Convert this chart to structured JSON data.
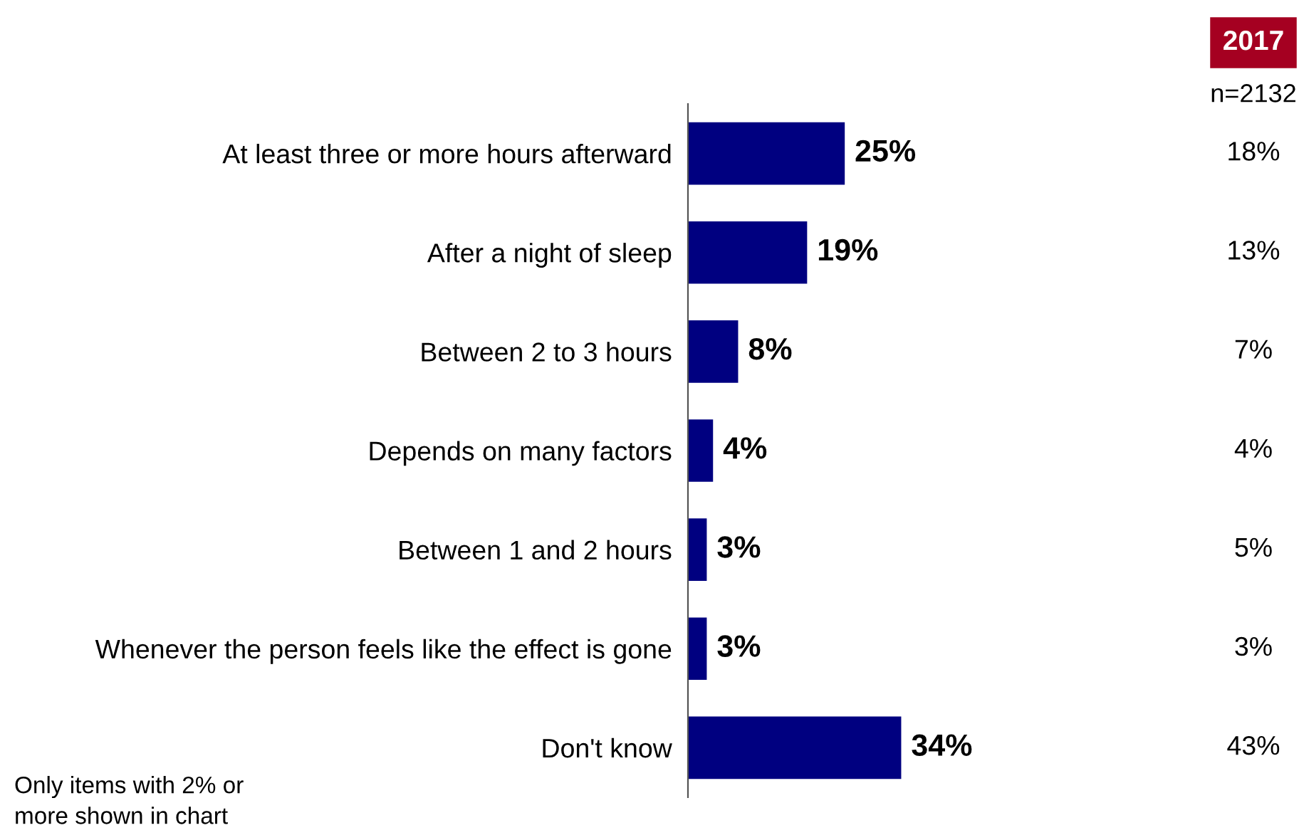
{
  "chart_data": {
    "type": "bar",
    "orientation": "horizontal",
    "categories": [
      "At least three or more hours afterward",
      "After a night of sleep",
      "Between 2 to 3 hours",
      "Depends on many factors",
      "Between 1 and 2 hours",
      "Whenever the person feels like the effect is gone",
      "Don't know"
    ],
    "values": [
      25,
      19,
      8,
      4,
      3,
      3,
      34
    ],
    "color": "#000080",
    "data_labels": true,
    "value_labels": [
      "25%",
      "19%",
      "8%",
      "4%",
      "3%",
      "3%",
      "34%"
    ],
    "tick_labels": "y",
    "grid": false,
    "legend": false,
    "annotations": [
      "2017",
      "n=2132",
      "18%",
      "13%",
      "7%",
      "4%",
      "5%",
      "3%",
      "43%",
      "Only items with 2% or\nmore shown in chart"
    ]
  }
}
